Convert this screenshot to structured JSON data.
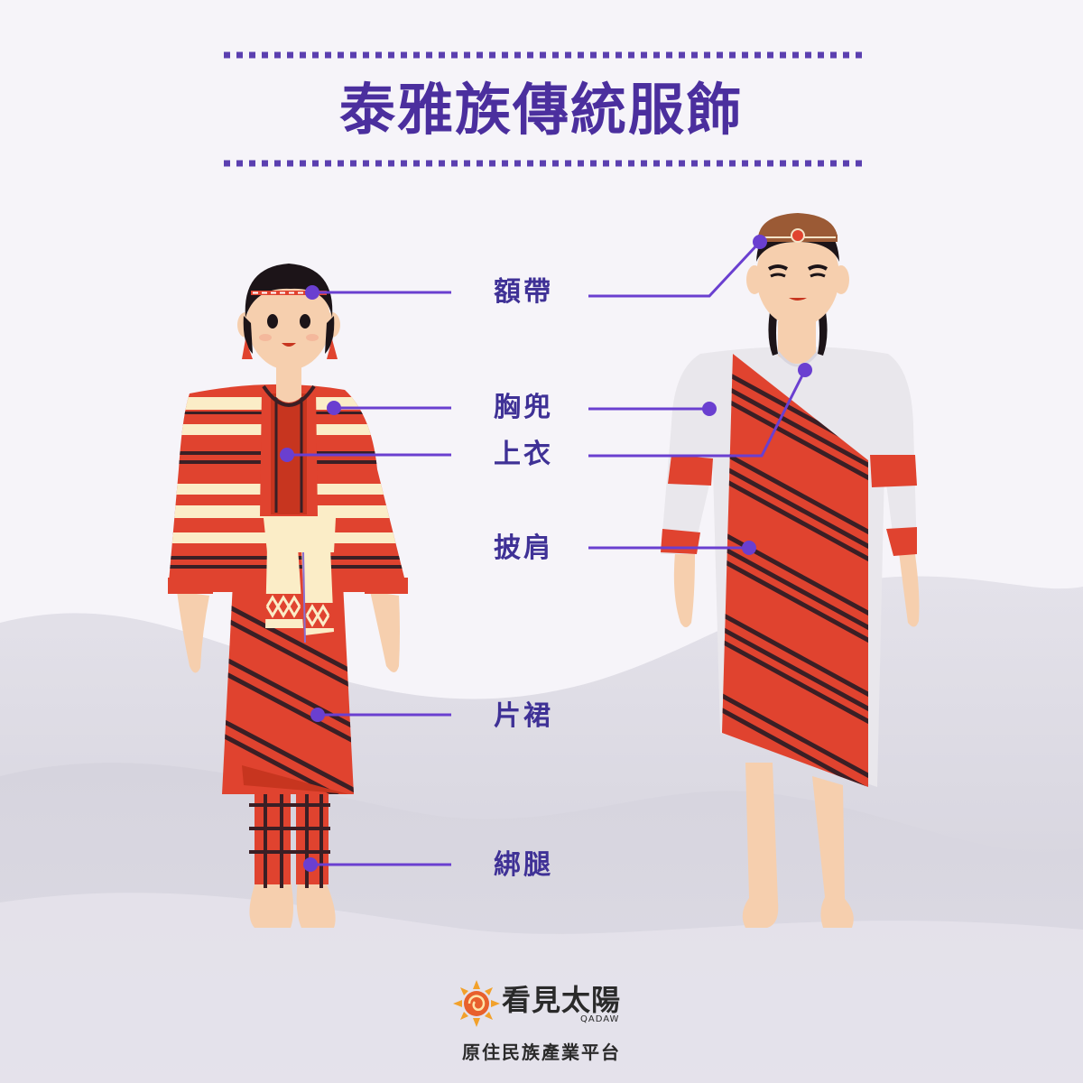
{
  "title": "泰雅族傳統服飾",
  "labels": {
    "headband": "額帶",
    "chest_apron": "胸兜",
    "top": "上衣",
    "shawl": "披肩",
    "skirt": "片裙",
    "leg_wrap": "綁腿"
  },
  "brand": {
    "name": "看見太陽",
    "sub": "QADAW",
    "tagline": "原住民族產業平台"
  },
  "colors": {
    "accent": "#4b2f9e",
    "leader": "#6a3fd0",
    "red": "#e0432f",
    "cream": "#fbedc7",
    "stripe": "#3a1f25",
    "skin": "#f6cfae"
  }
}
